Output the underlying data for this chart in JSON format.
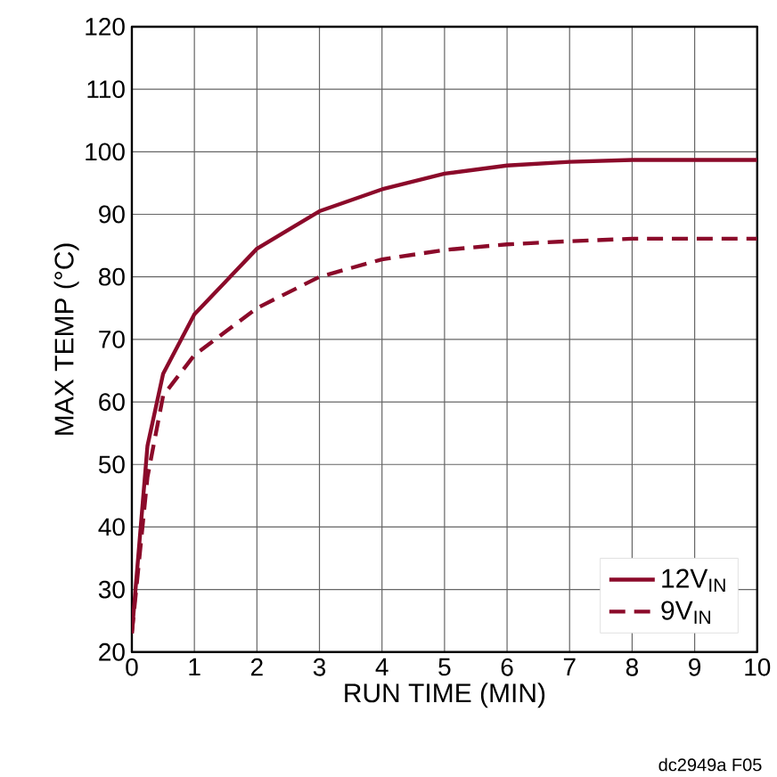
{
  "chart_data": {
    "type": "line",
    "xlabel": "RUN TIME (MIN)",
    "ylabel": "MAX TEMP (°C)",
    "x": [
      0,
      0.25,
      0.5,
      1,
      2,
      3,
      4,
      5,
      6,
      7,
      8,
      9,
      10
    ],
    "series": [
      {
        "name": "12V$_{IN}$",
        "color": "#8b0a2a",
        "line_style": "solid",
        "values": [
          23,
          53,
          64.5,
          74,
          84.5,
          90.5,
          94,
          96.5,
          97.8,
          98.4,
          98.7,
          98.7,
          98.7
        ]
      },
      {
        "name": "9V$_{IN}$",
        "color": "#8b0a2a",
        "line_style": "dashed",
        "values": [
          23,
          48,
          61,
          67.5,
          75,
          80,
          82.8,
          84.3,
          85.2,
          85.7,
          86.1,
          86.1,
          86.1
        ]
      }
    ],
    "xlim": [
      0,
      10
    ],
    "ylim": [
      20,
      120
    ],
    "xticks": [
      0,
      1,
      2,
      3,
      4,
      5,
      6,
      7,
      8,
      9,
      10
    ],
    "yticks": [
      20,
      30,
      40,
      50,
      60,
      70,
      80,
      90,
      100,
      110,
      120
    ],
    "grid": true,
    "legend": "bottom right",
    "marker": "none",
    "annotations": [
      "dc2949a F05"
    ]
  }
}
